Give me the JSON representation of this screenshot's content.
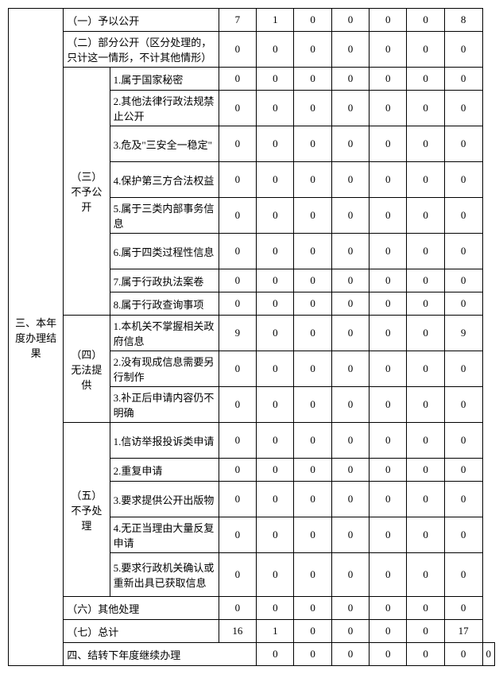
{
  "section3Title": "三、本年度办理结果",
  "section4Title": "四、结转下年度继续办理",
  "r1_label": "（一）予以公开",
  "r1_v": [
    "7",
    "1",
    "0",
    "0",
    "0",
    "0",
    "8"
  ],
  "r2_label": "（二）部分公开（区分处理的，只计这一情形，不计其他情形）",
  "r2_v": [
    "0",
    "0",
    "0",
    "0",
    "0",
    "0",
    "0"
  ],
  "r3_group": "（三）不予公开",
  "r3_items": [
    {
      "label": "1.属于国家秘密",
      "v": [
        "0",
        "0",
        "0",
        "0",
        "0",
        "0",
        "0"
      ]
    },
    {
      "label": "2.其他法律行政法规禁止公开",
      "v": [
        "0",
        "0",
        "0",
        "0",
        "0",
        "0",
        "0"
      ]
    },
    {
      "label": "3.危及\"三安全一稳定\"",
      "v": [
        "0",
        "0",
        "0",
        "0",
        "0",
        "0",
        "0"
      ]
    },
    {
      "label": "4.保护第三方合法权益",
      "v": [
        "0",
        "0",
        "0",
        "0",
        "0",
        "0",
        "0"
      ]
    },
    {
      "label": "5.属于三类内部事务信息",
      "v": [
        "0",
        "0",
        "0",
        "0",
        "0",
        "0",
        "0"
      ]
    },
    {
      "label": "6.属于四类过程性信息",
      "v": [
        "0",
        "0",
        "0",
        "0",
        "0",
        "0",
        "0"
      ]
    },
    {
      "label": "7.属于行政执法案卷",
      "v": [
        "0",
        "0",
        "0",
        "0",
        "0",
        "0",
        "0"
      ]
    },
    {
      "label": "8.属于行政查询事项",
      "v": [
        "0",
        "0",
        "0",
        "0",
        "0",
        "0",
        "0"
      ]
    }
  ],
  "r4_group": "（四）无法提供",
  "r4_items": [
    {
      "label": "1.本机关不掌握相关政府信息",
      "v": [
        "9",
        "0",
        "0",
        "0",
        "0",
        "0",
        "9"
      ]
    },
    {
      "label": "2.没有现成信息需要另行制作",
      "v": [
        "0",
        "0",
        "0",
        "0",
        "0",
        "0",
        "0"
      ]
    },
    {
      "label": "3.补正后申请内容仍不明确",
      "v": [
        "0",
        "0",
        "0",
        "0",
        "0",
        "0",
        "0"
      ]
    }
  ],
  "r5_group": "（五）不予处理",
  "r5_items": [
    {
      "label": "1.信访举报投诉类申请",
      "v": [
        "0",
        "0",
        "0",
        "0",
        "0",
        "0",
        "0"
      ]
    },
    {
      "label": "2.重复申请",
      "v": [
        "0",
        "0",
        "0",
        "0",
        "0",
        "0",
        "0"
      ]
    },
    {
      "label": "3.要求提供公开出版物",
      "v": [
        "0",
        "0",
        "0",
        "0",
        "0",
        "0",
        "0"
      ]
    },
    {
      "label": "4.无正当理由大量反复申请",
      "v": [
        "0",
        "0",
        "0",
        "0",
        "0",
        "0",
        "0"
      ]
    },
    {
      "label": "5.要求行政机关确认或重新出具已获取信息",
      "v": [
        "0",
        "0",
        "0",
        "0",
        "0",
        "0",
        "0"
      ]
    }
  ],
  "r6_label": "（六）其他处理",
  "r6_v": [
    "0",
    "0",
    "0",
    "0",
    "0",
    "0",
    "0"
  ],
  "r7_label": "（七）总计",
  "r7_v": [
    "16",
    "1",
    "0",
    "0",
    "0",
    "0",
    "17"
  ],
  "r8_v": [
    "0",
    "0",
    "0",
    "0",
    "0",
    "0",
    "0"
  ]
}
